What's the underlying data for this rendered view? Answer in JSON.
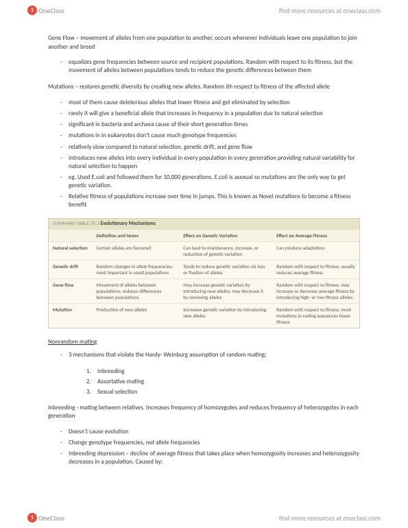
{
  "brand": {
    "logo_text": "OneClass",
    "logo_initial": "1",
    "tagline": "find more resources at oneclass.com"
  },
  "sections": {
    "geneflow_title": "Gene Flow – movement of alleles from one population to another, occurs whenever individuals leave one population to join another and breed",
    "geneflow_bullets": [
      "equalizes gene frequencies between source and recipient populations. Random with respect to its fitness, but the movement of alleles between populations tends to reduce the genetic differences between them"
    ],
    "mutations_title": "Mutations – restores genetic diversity by creating new alleles. Random ith respect to fitness of the affected allele",
    "mutations_bullets": [
      "most of them cause deleterious alleles that lower fitness and get eliminated by selection",
      "rarely it will give a beneficial allele that increases in frequency in a population due to natural selection",
      "significant in bacteria and archaea cause of their short generation times",
      "mutations in in eukaryotes don't cause much genotype frequencies",
      "relatively slow compared to natural selection, genetic drift, and gene flow",
      "introduces new alleles into every individual in every population in every generation providing natural variability for natural selection to happen",
      "eg. Used E.coli and followed them for 10,000 generations. E.coli is asexual so mutations are the only way to get genetic variation.",
      "Relative fitness of populations increase over time in jumps. This is known as Novel mutations to become a fitness benefit"
    ],
    "nonrandom_heading": "Nonrandom mating",
    "nonrandom_intro": "3 mechanisms that violate the Hardy- Weinburg assumption of random mating:",
    "nonrandom_list": [
      "Inbreeding",
      "Assortative mating",
      "Sexual selection"
    ],
    "inbreeding_title": "Inbreeding - mating between relatives. Increases frequency of homozygotes and reduces frequency of heterozygotes in each generation",
    "inbreeding_bullets": [
      "Doesn't cause evolution",
      "Change genotype frequencies, not allele frequencies",
      "Inbreeding depression – decline of average fitness that takes place when homozygosity increases and heterozygosity decreases in a population. Caused by:"
    ]
  },
  "table": {
    "caption_prefix": "SUMMARY TABLE 25.3",
    "caption_title": "Evolutionary Mechanisms",
    "headers": [
      "",
      "Definition and Notes",
      "Effect on Genetic Variation",
      "Effect on Average Fitness"
    ],
    "rows": [
      {
        "name": "Natural selection",
        "def": "Certain alleles are favoured",
        "effect_var": "Can lead to maintenance, increase, or reduction of genetic variation",
        "effect_fit": "Can produce adaptation"
      },
      {
        "name": "Genetic drift",
        "def": "Random changes in allele frequencies; most important in small populations",
        "effect_var": "Tends to reduce genetic variation via loss or fixation of alleles",
        "effect_fit": "Random with respect to fitness; usually reduces average fitness"
      },
      {
        "name": "Gene flow",
        "def": "Movement of alleles between populations; reduces differences between populations",
        "effect_var": "May increase genetic variation by introducing new alleles; may decrease it by removing alleles",
        "effect_fit": "Random with respect to fitness; may increase or decrease average fitness by introducing high- or low-fitness alleles"
      },
      {
        "name": "Mutation",
        "def": "Production of new alleles",
        "effect_var": "Increases genetic variation by introducing new alleles",
        "effect_fit": "Random with respect to fitness; most mutations in coding sequences lower fitness"
      }
    ]
  }
}
